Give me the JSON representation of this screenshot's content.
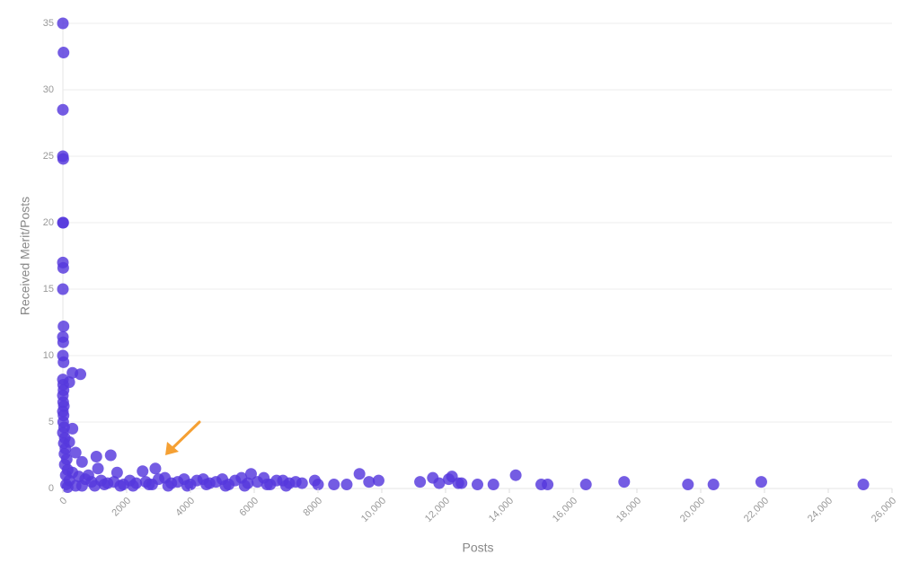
{
  "chart_data": {
    "type": "scatter",
    "x_label": "Posts",
    "y_label": "Received Merit/Posts",
    "color": "#5638dd",
    "grid": true,
    "xlim": [
      0,
      26000
    ],
    "ylim": [
      0,
      35
    ],
    "xticks": [
      0,
      2000,
      4000,
      6000,
      8000,
      {
        "value": 10000,
        "label": "10,000"
      },
      {
        "value": 12000,
        "label": "12,000"
      },
      {
        "value": 14000,
        "label": "14,000"
      },
      {
        "value": 16000,
        "label": "16,000"
      },
      {
        "value": 18000,
        "label": "18,000"
      },
      {
        "value": 20000,
        "label": "20,000"
      },
      {
        "value": 22000,
        "label": "22,000"
      },
      {
        "value": 24000,
        "label": "24,000"
      },
      {
        "value": 26000,
        "label": "26,000"
      }
    ],
    "yticks": [
      0,
      5,
      10,
      15,
      20,
      25,
      30,
      35
    ],
    "x": [
      0,
      20,
      0,
      0,
      10,
      0,
      10,
      0,
      10,
      0,
      20,
      0,
      10,
      0,
      20,
      0,
      10,
      20,
      0,
      10,
      30,
      0,
      20,
      10,
      40,
      0,
      60,
      30,
      80,
      50,
      120,
      60,
      150,
      90,
      200,
      100,
      150,
      300,
      200,
      550,
      300,
      200,
      400,
      600,
      1050,
      1500,
      1100,
      800,
      1700,
      2500,
      2900,
      3200,
      3800,
      4400,
      5000,
      5600,
      5900,
      6300,
      6900,
      7500,
      7900,
      8000,
      8500,
      8900,
      9300,
      9600,
      9900,
      11200,
      11600,
      11800,
      12100,
      12200,
      12400,
      12500,
      13000,
      13500,
      14200,
      15000,
      15200,
      16400,
      17600,
      19600,
      20400,
      21900,
      25100,
      300,
      500,
      700,
      900,
      1200,
      1400,
      1600,
      1900,
      2100,
      2300,
      2600,
      2800,
      3000,
      3400,
      3600,
      4000,
      4200,
      4600,
      4800,
      5200,
      5400,
      5800,
      6100,
      6500,
      6700,
      7100,
      7300,
      400,
      600,
      1000,
      1300,
      1800,
      2200,
      2700,
      3300,
      3900,
      4500,
      5100,
      5700,
      6400,
      7000
    ],
    "values": [
      35,
      32.8,
      28.5,
      25,
      24.8,
      20,
      20,
      17,
      16.6,
      15,
      12.2,
      11.4,
      11,
      10,
      9.5,
      8.2,
      7.8,
      7.4,
      7,
      6.5,
      6.2,
      5.8,
      5.5,
      5,
      4.6,
      4.2,
      3.8,
      3.4,
      3,
      2.6,
      2.2,
      1.8,
      1.4,
      1,
      0.6,
      0.3,
      0.1,
      8.7,
      8,
      8.6,
      4.5,
      3.5,
      2.7,
      2,
      2.4,
      2.5,
      1.5,
      1,
      1.2,
      1.3,
      1.5,
      0.8,
      0.7,
      0.7,
      0.7,
      0.8,
      1.1,
      0.8,
      0.6,
      0.4,
      0.6,
      0.3,
      0.3,
      0.3,
      1.1,
      0.5,
      0.6,
      0.5,
      0.8,
      0.4,
      0.7,
      0.9,
      0.4,
      0.4,
      0.3,
      0.3,
      1,
      0.3,
      0.3,
      0.3,
      0.5,
      0.3,
      0.3,
      0.5,
      0.3,
      1.2,
      0.9,
      0.7,
      0.5,
      0.6,
      0.4,
      0.5,
      0.3,
      0.6,
      0.4,
      0.5,
      0.3,
      0.7,
      0.4,
      0.5,
      0.3,
      0.6,
      0.4,
      0.5,
      0.3,
      0.6,
      0.4,
      0.5,
      0.3,
      0.6,
      0.4,
      0.5,
      0.2,
      0.2,
      0.2,
      0.3,
      0.2,
      0.2,
      0.3,
      0.2,
      0.2,
      0.3,
      0.2,
      0.2,
      0.3,
      0.2
    ]
  }
}
